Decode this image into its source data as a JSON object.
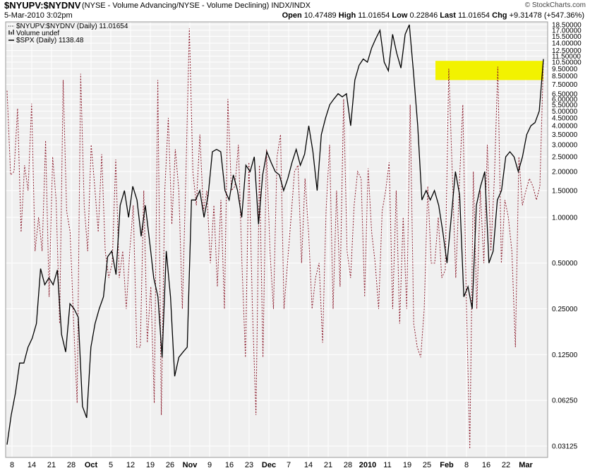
{
  "header": {
    "symbol": "$NYUPV:$NYDNV",
    "description": "(NYSE - Volume Advancing/NYSE - Volume Declining) INDX/INDX",
    "brand": "© StockCharts.com",
    "datetime": "5-Mar-2010 3:02pm",
    "quote": {
      "open_label": "Open",
      "open": "10.47489",
      "high_label": "High",
      "high": "11.01654",
      "low_label": "Low",
      "low": "0.22846",
      "last_label": "Last",
      "last": "11.01654",
      "chg_label": "Chg",
      "chg": "+9.31478 (+547.36%)"
    }
  },
  "colors": {
    "ratio_line": "#8b1a2b",
    "spx_line": "#000000",
    "highlight": "#f2f200",
    "plot_bg": "#f0f0f0",
    "grid": "#ffffff"
  },
  "chart_data": {
    "type": "line",
    "scale": "log",
    "grid": true,
    "legend_position": "top-left",
    "legend": [
      {
        "style": "dotted",
        "label": "$NYUPV:$NYDNV (Daily) 11.01654"
      },
      {
        "style": "bar",
        "label": "Volume undef"
      },
      {
        "style": "solid",
        "label": "$SPX (Daily) 1138.48"
      }
    ],
    "y_ticks": [
      "18.50000",
      "17.00000",
      "15.50000",
      "14.00000",
      "12.50000",
      "11.50000",
      "10.50000",
      "9.50000",
      "8.50000",
      "7.50000",
      "6.50000",
      "6.00000",
      "5.50000",
      "5.00000",
      "4.50000",
      "4.00000",
      "3.50000",
      "3.00000",
      "2.50000",
      "2.00000",
      "1.50000",
      "1.00000",
      "0.50000",
      "0.25000",
      "0.12500",
      "0.06250",
      "0.03125"
    ],
    "x_ticks": [
      "8",
      "14",
      "21",
      "28",
      "Oct",
      "5",
      "12",
      "19",
      "26",
      "Nov",
      "9",
      "16",
      "23",
      "Dec",
      "7",
      "14",
      "21",
      "28",
      "2010",
      "11",
      "19",
      "25",
      "Feb",
      "8",
      "16",
      "22",
      "Mar"
    ],
    "x_ticks_bold": [
      "Oct",
      "Nov",
      "Dec",
      "2010",
      "Feb",
      "Mar"
    ],
    "highlight_range": [
      8.0,
      10.7
    ],
    "ratio_series": [
      6.8,
      1.9,
      2.0,
      5.2,
      0.8,
      2.2,
      1.5,
      5.6,
      0.6,
      1.0,
      0.6,
      3.2,
      0.3,
      2.5,
      1.3,
      0.2,
      8.0,
      1.1,
      0.8,
      0.2,
      0.06,
      8.8,
      1.2,
      0.6,
      3.0,
      1.6,
      0.8,
      2.6,
      0.6,
      0.4,
      0.5,
      2.4,
      0.4,
      0.6,
      0.25,
      0.6,
      1.2,
      0.14,
      0.14,
      1.5,
      0.15,
      0.35,
      0.06,
      8.0,
      0.05,
      1.5,
      4.5,
      0.9,
      2.8,
      1.5,
      0.25,
      1.8,
      17.5,
      2.0,
      1.2,
      3.5,
      1.1,
      1.5,
      0.5,
      1.2,
      0.35,
      1.3,
      0.25,
      6.0,
      1.5,
      1.6,
      3.0,
      0.5,
      0.12,
      2.3,
      0.25,
      0.05,
      2.2,
      0.12,
      2.8,
      0.6,
      0.25,
      2.5,
      3.5,
      0.25,
      0.5,
      1.0,
      2.0,
      2.2,
      0.5,
      1.8,
      0.8,
      0.25,
      0.4,
      0.5,
      0.15,
      1.1,
      3.0,
      0.25,
      1.5,
      0.35,
      6.0,
      0.6,
      0.4,
      1.2,
      2.0,
      1.8,
      0.3,
      2.1,
      0.8,
      0.5,
      0.25,
      1.1,
      1.5,
      2.3,
      0.25,
      1.5,
      0.2,
      1.0,
      0.25,
      5.5,
      0.2,
      0.14,
      0.12,
      0.25,
      1.6,
      0.5,
      0.5,
      1.0,
      0.4,
      0.45,
      9.5,
      2.0,
      0.4,
      1.6,
      5.5,
      0.3,
      0.03,
      2.0,
      0.25,
      1.5,
      0.5,
      3.0,
      0.6,
      1.8,
      9.8,
      0.5,
      1.3,
      1.0,
      0.6,
      0.14,
      2.5,
      1.2,
      1.5,
      1.8,
      1.6,
      1.3,
      1.6,
      11.0
    ],
    "spx_series": [
      0.032,
      0.05,
      0.07,
      0.11,
      0.11,
      0.14,
      0.16,
      0.2,
      0.46,
      0.36,
      0.4,
      0.36,
      0.45,
      0.17,
      0.13,
      0.27,
      0.25,
      0.22,
      0.057,
      0.048,
      0.14,
      0.2,
      0.25,
      0.3,
      0.55,
      0.6,
      0.42,
      1.2,
      1.5,
      1.0,
      1.6,
      1.3,
      0.75,
      1.2,
      0.7,
      0.4,
      0.3,
      0.12,
      0.6,
      0.3,
      0.09,
      0.12,
      0.13,
      0.14,
      1.3,
      1.3,
      1.5,
      1.0,
      1.4,
      2.7,
      2.8,
      2.7,
      1.5,
      1.3,
      1.9,
      1.5,
      1.0,
      2.2,
      2.0,
      2.5,
      0.9,
      1.9,
      2.7,
      2.3,
      2.0,
      1.9,
      1.5,
      1.8,
      2.3,
      2.8,
      2.2,
      2.6,
      4.0,
      2.7,
      1.5,
      3.5,
      4.5,
      5.5,
      6.0,
      6.5,
      6.2,
      6.5,
      4.0,
      8.0,
      10.0,
      11.0,
      10.5,
      13.0,
      15.0,
      17.0,
      10.5,
      9.2,
      16.0,
      12.0,
      9.6,
      16.0,
      18.5,
      9.0,
      4.0,
      1.3,
      1.5,
      1.3,
      1.5,
      1.2,
      0.8,
      0.5,
      1.0,
      2.0,
      1.4,
      0.3,
      0.35,
      0.25,
      1.2,
      1.6,
      2.0,
      0.5,
      0.6,
      1.3,
      1.5,
      2.5,
      2.7,
      2.5,
      2.0,
      2.5,
      3.5,
      4.0,
      4.2,
      5.0,
      11.0
    ]
  }
}
